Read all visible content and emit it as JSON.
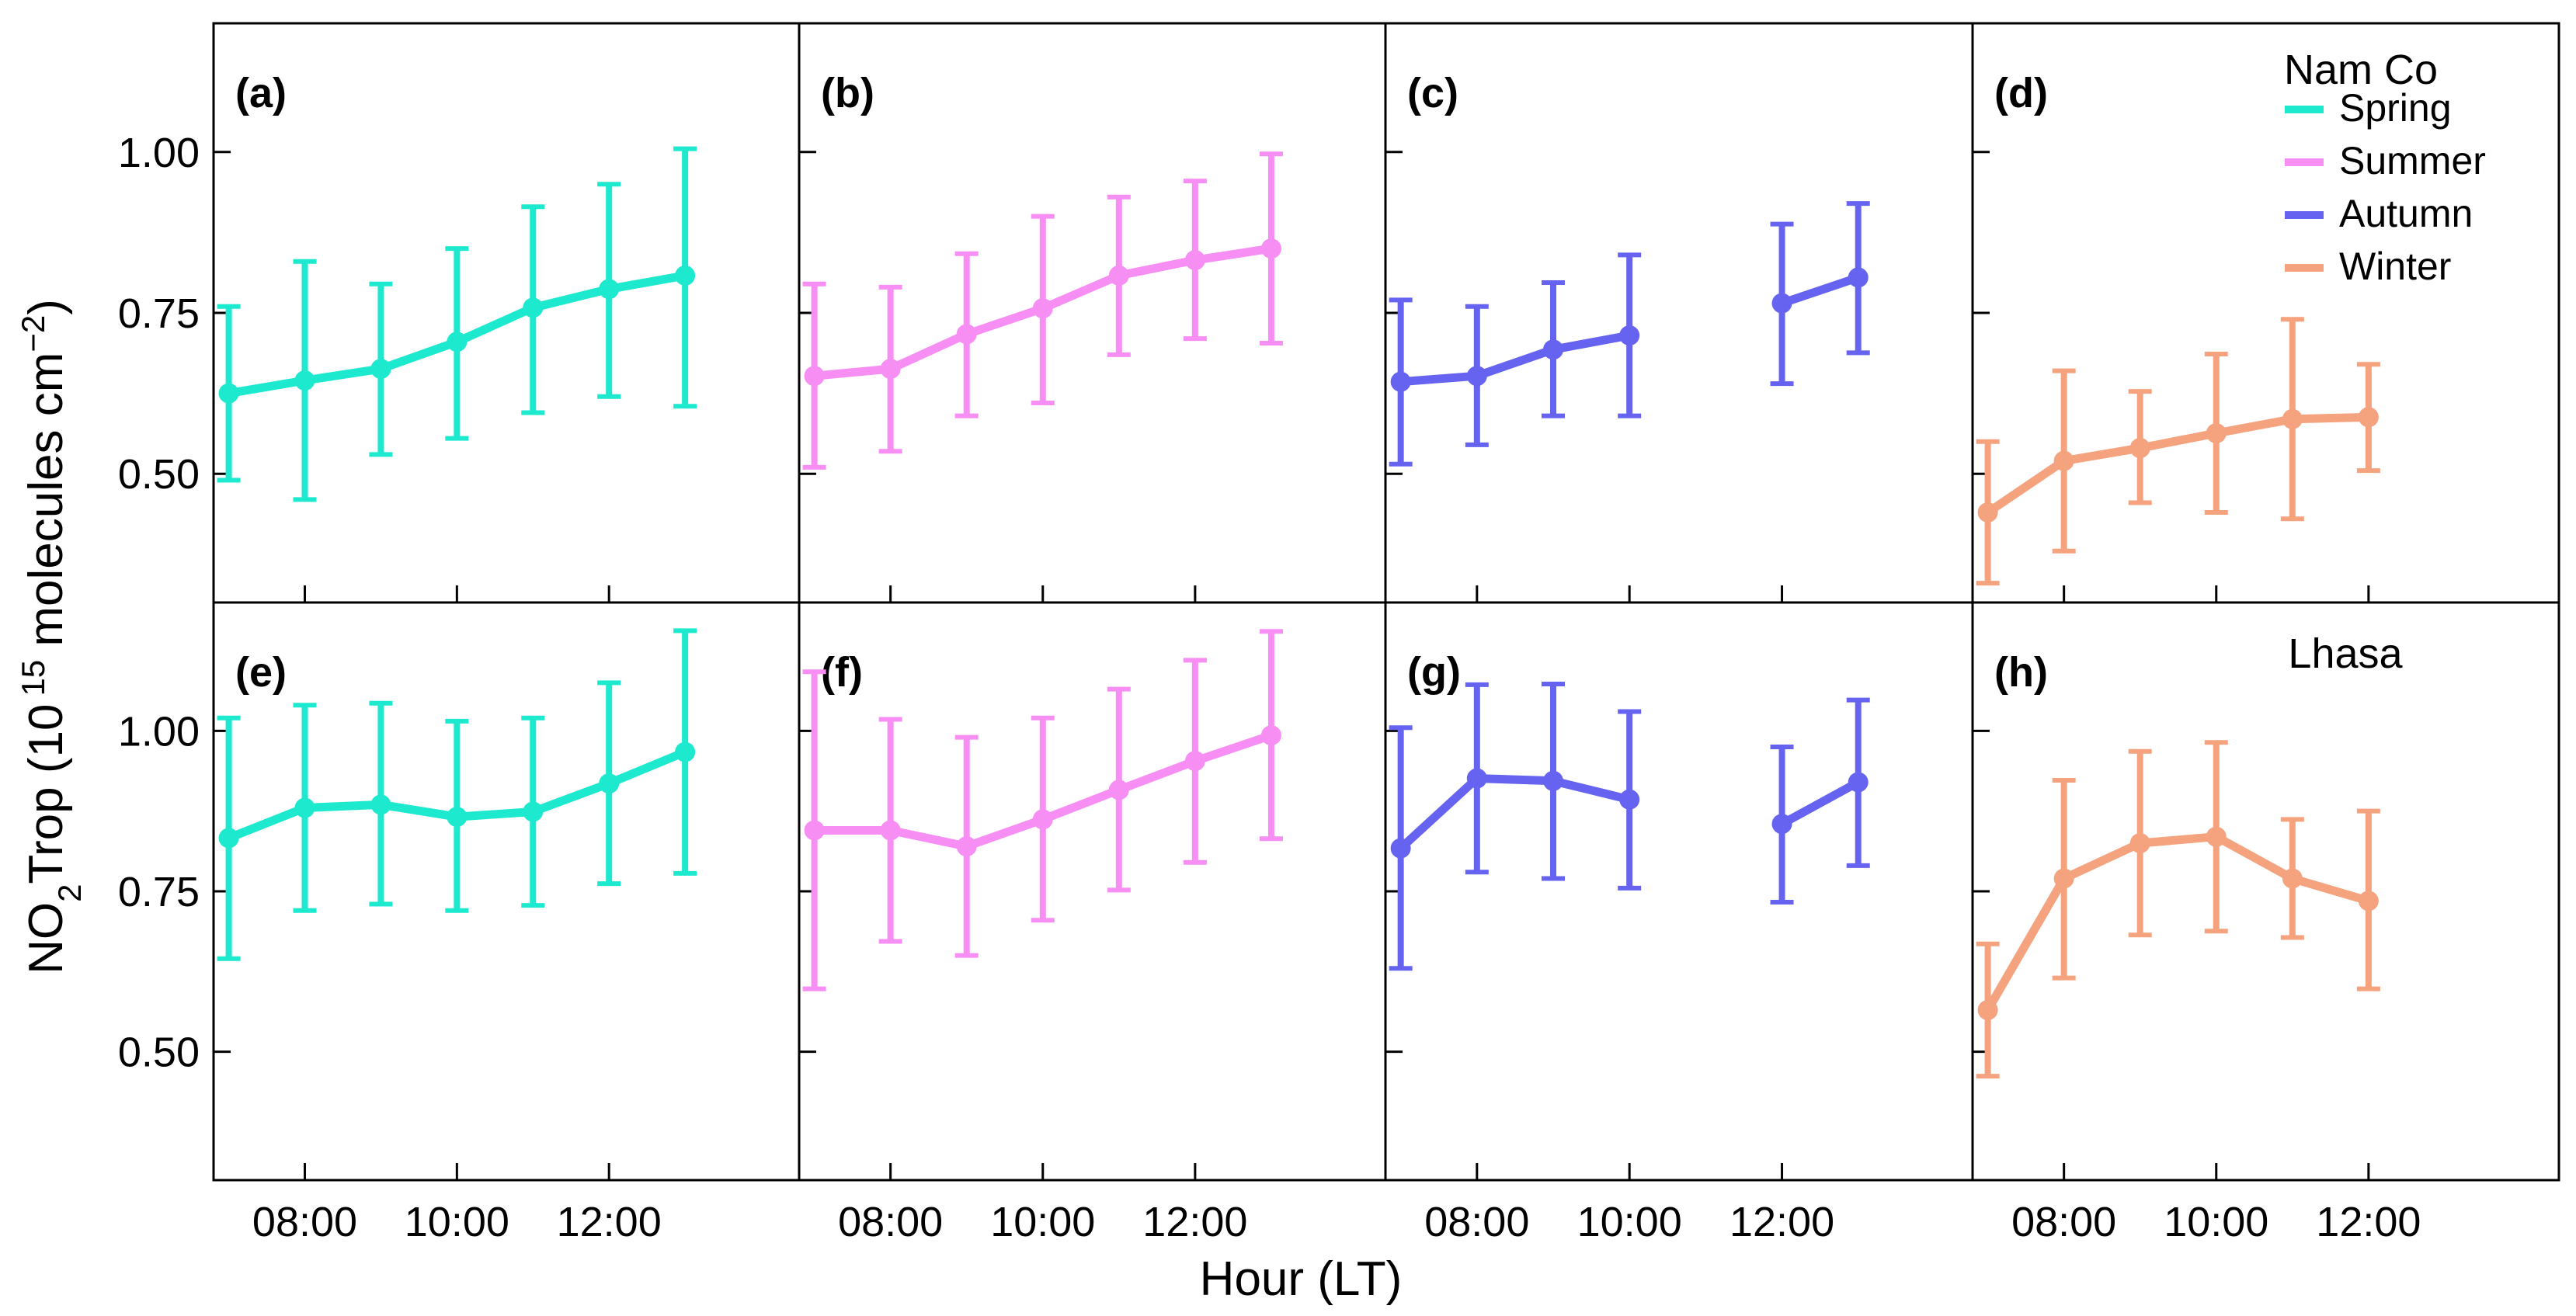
{
  "chart_data": {
    "type": "line",
    "ylabel_main": "NO",
    "ylabel_sub": "2",
    "ylabel_rest": "Trop (10",
    "ylabel_sup": "15",
    "ylabel_units": " molecules cm",
    "ylabel_unit_sup": "−2",
    "ylabel_close": ")",
    "xlabel": "Hour (LT)",
    "x_range": [
      6.8,
      14.5
    ],
    "y_range": [
      0.3,
      1.2
    ],
    "x_ticks": [
      8,
      10,
      12
    ],
    "x_tick_labels": [
      "08:00",
      "10:00",
      "12:00"
    ],
    "y_ticks": [
      0.5,
      0.75,
      1.0
    ],
    "y_tick_labels": [
      "0.50",
      "0.75",
      "1.00"
    ],
    "legend": {
      "title": "Nam Co",
      "entries": [
        {
          "name": "Spring",
          "color": "#1de9cf"
        },
        {
          "name": "Summer",
          "color": "#f78ef3"
        },
        {
          "name": "Autumn",
          "color": "#6663f0"
        },
        {
          "name": "Winter",
          "color": "#f5a27e"
        }
      ]
    },
    "site_label_bottom": "Lhasa",
    "panels": [
      {
        "label": "(a)",
        "season": "Spring",
        "site": "Nam Co",
        "color": "#1de9cf",
        "segments": [
          [
            {
              "x": 7,
              "y": 0.625,
              "lo": 0.49,
              "hi": 0.76
            },
            {
              "x": 8,
              "y": 0.645,
              "lo": 0.46,
              "hi": 0.83
            },
            {
              "x": 9,
              "y": 0.663,
              "lo": 0.53,
              "hi": 0.795
            },
            {
              "x": 10,
              "y": 0.705,
              "lo": 0.555,
              "hi": 0.85
            },
            {
              "x": 11,
              "y": 0.758,
              "lo": 0.595,
              "hi": 0.915
            },
            {
              "x": 12,
              "y": 0.787,
              "lo": 0.62,
              "hi": 0.95
            },
            {
              "x": 13,
              "y": 0.808,
              "lo": 0.605,
              "hi": 1.005
            }
          ]
        ]
      },
      {
        "label": "(b)",
        "season": "Summer",
        "site": "Nam Co",
        "color": "#f78ef3",
        "segments": [
          [
            {
              "x": 7,
              "y": 0.652,
              "lo": 0.51,
              "hi": 0.795
            },
            {
              "x": 8,
              "y": 0.663,
              "lo": 0.535,
              "hi": 0.79
            },
            {
              "x": 9,
              "y": 0.717,
              "lo": 0.59,
              "hi": 0.842
            },
            {
              "x": 10,
              "y": 0.757,
              "lo": 0.61,
              "hi": 0.9
            },
            {
              "x": 11,
              "y": 0.808,
              "lo": 0.685,
              "hi": 0.93
            },
            {
              "x": 12,
              "y": 0.832,
              "lo": 0.71,
              "hi": 0.955
            },
            {
              "x": 13,
              "y": 0.85,
              "lo": 0.703,
              "hi": 0.997
            }
          ]
        ]
      },
      {
        "label": "(c)",
        "season": "Autumn",
        "site": "Nam Co",
        "color": "#6663f0",
        "segments": [
          [
            {
              "x": 7,
              "y": 0.643,
              "lo": 0.515,
              "hi": 0.77
            },
            {
              "x": 8,
              "y": 0.652,
              "lo": 0.545,
              "hi": 0.76
            },
            {
              "x": 9,
              "y": 0.693,
              "lo": 0.59,
              "hi": 0.797
            },
            {
              "x": 10,
              "y": 0.715,
              "lo": 0.59,
              "hi": 0.84
            }
          ],
          [
            {
              "x": 12,
              "y": 0.765,
              "lo": 0.64,
              "hi": 0.888
            },
            {
              "x": 13,
              "y": 0.805,
              "lo": 0.688,
              "hi": 0.92
            }
          ]
        ]
      },
      {
        "label": "(d)",
        "season": "Winter",
        "site": "Nam Co",
        "color": "#f5a27e",
        "segments": [
          [
            {
              "x": 7,
              "y": 0.44,
              "lo": 0.33,
              "hi": 0.55
            },
            {
              "x": 8,
              "y": 0.52,
              "lo": 0.38,
              "hi": 0.66
            },
            {
              "x": 9,
              "y": 0.54,
              "lo": 0.455,
              "hi": 0.628
            },
            {
              "x": 10,
              "y": 0.563,
              "lo": 0.44,
              "hi": 0.686
            },
            {
              "x": 11,
              "y": 0.585,
              "lo": 0.43,
              "hi": 0.74
            },
            {
              "x": 12,
              "y": 0.588,
              "lo": 0.505,
              "hi": 0.67
            }
          ]
        ]
      },
      {
        "label": "(e)",
        "season": "Spring",
        "site": "Lhasa",
        "color": "#1de9cf",
        "segments": [
          [
            {
              "x": 7,
              "y": 0.833,
              "lo": 0.645,
              "hi": 1.02
            },
            {
              "x": 8,
              "y": 0.88,
              "lo": 0.72,
              "hi": 1.04
            },
            {
              "x": 9,
              "y": 0.885,
              "lo": 0.73,
              "hi": 1.043
            },
            {
              "x": 10,
              "y": 0.866,
              "lo": 0.72,
              "hi": 1.015
            },
            {
              "x": 11,
              "y": 0.874,
              "lo": 0.728,
              "hi": 1.02
            },
            {
              "x": 12,
              "y": 0.918,
              "lo": 0.762,
              "hi": 1.075
            },
            {
              "x": 13,
              "y": 0.967,
              "lo": 0.778,
              "hi": 1.156
            }
          ]
        ]
      },
      {
        "label": "(f)",
        "season": "Summer",
        "site": "Lhasa",
        "color": "#f78ef3",
        "segments": [
          [
            {
              "x": 7,
              "y": 0.845,
              "lo": 0.598,
              "hi": 1.092
            },
            {
              "x": 8,
              "y": 0.845,
              "lo": 0.672,
              "hi": 1.018
            },
            {
              "x": 9,
              "y": 0.82,
              "lo": 0.65,
              "hi": 0.99
            },
            {
              "x": 10,
              "y": 0.862,
              "lo": 0.705,
              "hi": 1.02
            },
            {
              "x": 11,
              "y": 0.908,
              "lo": 0.752,
              "hi": 1.065
            },
            {
              "x": 12,
              "y": 0.953,
              "lo": 0.795,
              "hi": 1.11
            },
            {
              "x": 13,
              "y": 0.993,
              "lo": 0.832,
              "hi": 1.155
            }
          ]
        ]
      },
      {
        "label": "(g)",
        "season": "Autumn",
        "site": "Lhasa",
        "color": "#6663f0",
        "segments": [
          [
            {
              "x": 7,
              "y": 0.817,
              "lo": 0.63,
              "hi": 1.005
            },
            {
              "x": 8,
              "y": 0.926,
              "lo": 0.78,
              "hi": 1.072
            },
            {
              "x": 9,
              "y": 0.922,
              "lo": 0.77,
              "hi": 1.073
            },
            {
              "x": 10,
              "y": 0.893,
              "lo": 0.755,
              "hi": 1.03
            }
          ],
          [
            {
              "x": 12,
              "y": 0.855,
              "lo": 0.733,
              "hi": 0.975
            },
            {
              "x": 13,
              "y": 0.92,
              "lo": 0.79,
              "hi": 1.048
            }
          ]
        ]
      },
      {
        "label": "(h)",
        "season": "Winter",
        "site": "Lhasa",
        "color": "#f5a27e",
        "segments": [
          [
            {
              "x": 7,
              "y": 0.565,
              "lo": 0.462,
              "hi": 0.668
            },
            {
              "x": 8,
              "y": 0.77,
              "lo": 0.615,
              "hi": 0.923
            },
            {
              "x": 9,
              "y": 0.825,
              "lo": 0.682,
              "hi": 0.968
            },
            {
              "x": 10,
              "y": 0.835,
              "lo": 0.688,
              "hi": 0.982
            },
            {
              "x": 11,
              "y": 0.77,
              "lo": 0.678,
              "hi": 0.862
            },
            {
              "x": 12,
              "y": 0.735,
              "lo": 0.598,
              "hi": 0.875
            }
          ]
        ]
      }
    ]
  }
}
